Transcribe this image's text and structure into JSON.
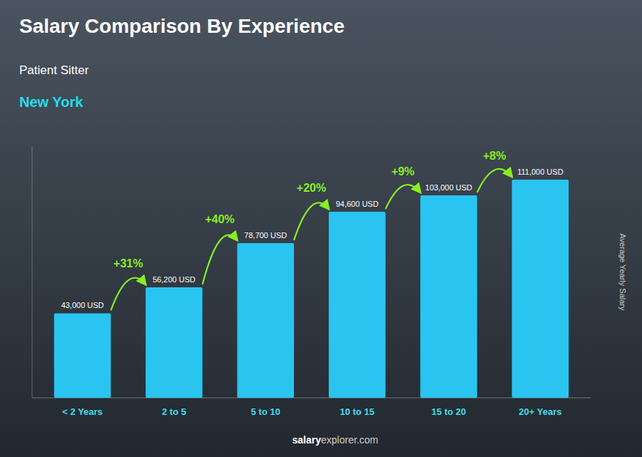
{
  "chart_data": {
    "type": "bar",
    "title": "Salary Comparison By Experience",
    "subtitle": [
      "Patient Sitter",
      "New York"
    ],
    "categories": [
      "< 2 Years",
      "2 to 5",
      "5 to 10",
      "10 to 15",
      "15 to 20",
      "20+ Years"
    ],
    "values": [
      43000,
      56200,
      78700,
      94600,
      103000,
      111000
    ],
    "value_labels": [
      "43,000 USD",
      "56,200 USD",
      "78,700 USD",
      "94,600 USD",
      "103,000 USD",
      "111,000 USD"
    ],
    "data_labels": true,
    "annotations": [
      "+31%",
      "+40%",
      "+20%",
      "+9%",
      "+8%"
    ],
    "ylabel": "Average Yearly Salary",
    "footer": [
      "salary",
      "explorer.com"
    ],
    "color": "#29c5f0",
    "ylim": [
      0,
      128000
    ],
    "grid": false,
    "tick_labels": "x"
  }
}
